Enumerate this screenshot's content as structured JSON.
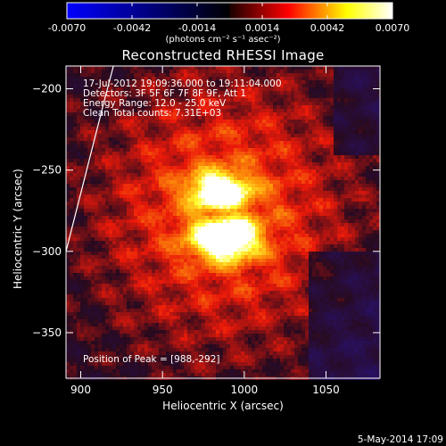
{
  "colorbar": {
    "tick_labels": [
      "-0.0070",
      "-0.0042",
      "-0.0014",
      "0.0014",
      "0.0042",
      "0.0070"
    ],
    "units_label": "(photons cm⁻² s⁻¹ asec⁻²)",
    "range": [
      -0.007,
      0.007
    ],
    "colors": [
      "#0000ff",
      "#000000",
      "#ff0000",
      "#ffff00",
      "#ffffff"
    ]
  },
  "header": {
    "title": "Reconstructed RHESSI Image"
  },
  "annotations": {
    "time_range": "17-Jul-2012 19:09:36.000 to 19:11:04.000",
    "detectors": "Detectors: 3F 5F 6F 7F 8F 9F, Att 1",
    "energy_range": "Energy Range: 12.0 - 25.0 keV",
    "clean_counts": "Clean    Total counts: 7.31E+03",
    "peak_position": "Position of Peak = [988,-292]"
  },
  "footer": {
    "timestamp": "5-May-2014 17:09"
  },
  "chart_data": {
    "type": "heatmap",
    "title": "Reconstructed RHESSI Image",
    "xlabel": "Heliocentric X (arcsec)",
    "ylabel": "Heliocentric Y (arcsec)",
    "xlim": [
      891,
      1083
    ],
    "ylim": [
      -378,
      -186
    ],
    "x_ticks": [
      900,
      950,
      1000,
      1050
    ],
    "y_ticks": [
      -200,
      -250,
      -300,
      -350
    ],
    "x_tick_labels": [
      "900",
      "950",
      "1000",
      "1050"
    ],
    "y_tick_labels": [
      "−200",
      "−250",
      "−300",
      "−350"
    ],
    "peak": [
      988,
      -292
    ],
    "colormap": "rhessi-flux",
    "limb_line": [
      [
        891,
        -300
      ],
      [
        915,
        -205
      ],
      [
        920,
        -186
      ]
    ]
  }
}
